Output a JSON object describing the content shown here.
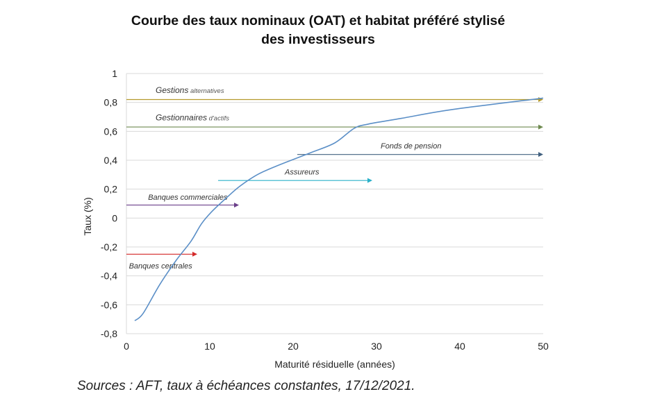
{
  "title": {
    "line1": "Courbe des taux nominaux (OAT) et habitat préféré stylisé",
    "line2": "des investisseurs"
  },
  "source": "Sources : AFT, taux à échéances constantes, 17/12/2021.",
  "chart_data": {
    "type": "line",
    "title": "Courbe des taux nominaux (OAT) et habitat préféré stylisé des investisseurs",
    "xlabel": "Maturité résiduelle (années)",
    "ylabel": "Taux (%)",
    "xlim": [
      0,
      50
    ],
    "ylim": [
      -0.8,
      1
    ],
    "xticks": [
      "0",
      "10",
      "20",
      "30",
      "40",
      "50"
    ],
    "yticks": [
      "1",
      "0,8",
      "0,6",
      "0,4",
      "0,2",
      "0",
      "-0,2",
      "-0,4",
      "-0,6",
      "-0,8"
    ],
    "grid": "horizontal",
    "series": [
      {
        "name": "OAT",
        "color": "#5b8fc7",
        "x": [
          1,
          2,
          4,
          6,
          7.75,
          9,
          10.25,
          12,
          13.6,
          15.7,
          18,
          22,
          25,
          27.3,
          29,
          33,
          39,
          50
        ],
        "values": [
          -0.71,
          -0.66,
          -0.46,
          -0.29,
          -0.16,
          -0.04,
          0.045,
          0.14,
          0.22,
          0.3,
          0.36,
          0.45,
          0.52,
          0.62,
          0.65,
          0.69,
          0.75,
          0.83
        ]
      }
    ],
    "annotations": [
      {
        "label_main": "Gestions",
        "label_sub": " alternatives",
        "y": 0.82,
        "x_start": 0,
        "x_end": 50,
        "color": "#b59a2c",
        "label_x": 3.5,
        "label_y": 0.885
      },
      {
        "label_main": "Gestionnaires",
        "label_sub": " d'actifs",
        "y": 0.63,
        "x_start": 0,
        "x_end": 50,
        "color": "#6e8a4f",
        "label_x": 3.5,
        "label_y": 0.695
      },
      {
        "label_main": "Fonds de pension",
        "label_sub": "",
        "y": 0.44,
        "x_start": 20.5,
        "x_end": 50,
        "color": "#41607f",
        "label_x": 30.5,
        "label_y": 0.5
      },
      {
        "label_main": "Assureurs",
        "label_sub": "",
        "y": 0.26,
        "x_start": 11,
        "x_end": 29.5,
        "color": "#2ab0c9",
        "label_x": 19,
        "label_y": 0.32
      },
      {
        "label_main": "Banques commerciales",
        "label_sub": "",
        "y": 0.09,
        "x_start": 0,
        "x_end": 13.5,
        "color": "#6b3f8a",
        "label_x": 2.6,
        "label_y": 0.145
      },
      {
        "label_main": "Banques centrales",
        "label_sub": "",
        "y": -0.25,
        "x_start": 0,
        "x_end": 8.5,
        "color": "#d42a2a",
        "label_x": 0.3,
        "label_y": -0.33
      }
    ]
  }
}
